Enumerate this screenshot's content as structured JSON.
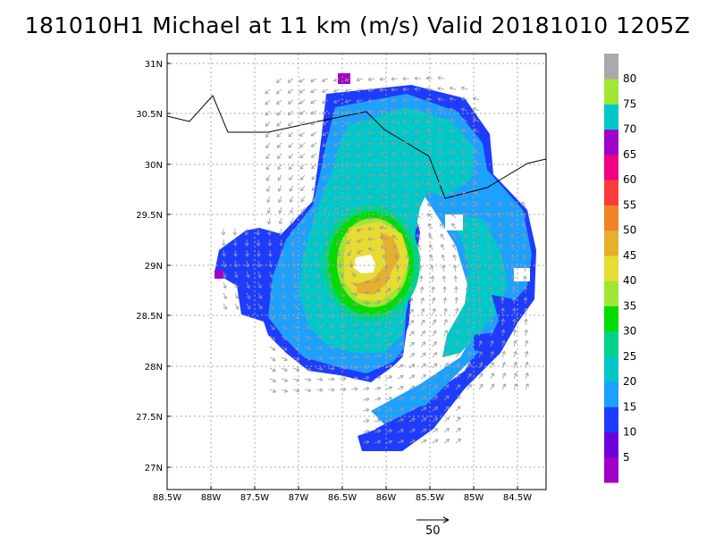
{
  "title": "181010H1 Michael at 11 km (m/s) Valid 20181010 1205Z",
  "map": {
    "lon_labels": [
      "88.5W",
      "88W",
      "87.5W",
      "87W",
      "86.5W",
      "86W",
      "85.5W",
      "85W",
      "84.5W"
    ],
    "lat_labels": [
      "31N",
      "30.5N",
      "30N",
      "29.5N",
      "29N",
      "28.5N",
      "28N",
      "27.5N",
      "27N"
    ],
    "center_label": "storm-center"
  },
  "colorbar": {
    "labels": [
      "5",
      "10",
      "15",
      "20",
      "25",
      "30",
      "35",
      "40",
      "45",
      "50",
      "55",
      "60",
      "65",
      "70",
      "75",
      "80"
    ],
    "colors": [
      "#a000c8",
      "#6e00dc",
      "#1e3cff",
      "#1ea0ff",
      "#00c8c8",
      "#00d28c",
      "#00dc00",
      "#a0e632",
      "#e6dc32",
      "#e6af2d",
      "#f08228",
      "#fa3c3c",
      "#f00082",
      "#a000c8",
      "#00c8c8",
      "#a0e632",
      "#aaaaaa"
    ]
  },
  "reference_vector": {
    "label": "50"
  },
  "colors": {
    "coastline": "#000000",
    "grid": "#aaaaaa",
    "wind_arrow": "#9a9a9a"
  }
}
